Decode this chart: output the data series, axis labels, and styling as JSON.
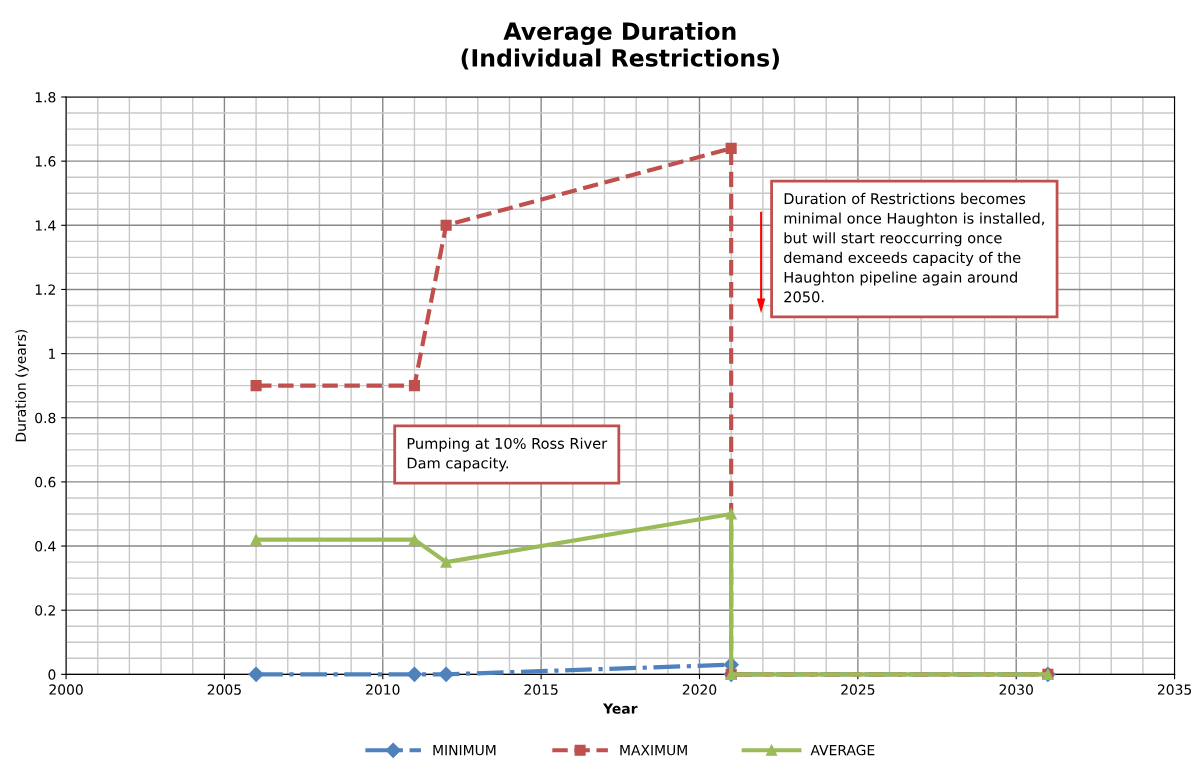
{
  "chart_data": {
    "type": "line",
    "title": "Average Duration\n(Individual Restrictions)",
    "xlabel": "Year",
    "ylabel": "Duration (years)",
    "x": [
      2006,
      2011,
      2012,
      2021,
      2021,
      2031
    ],
    "series": [
      {
        "name": "MINIMUM",
        "color": "#4f81bd",
        "values": [
          0,
          0,
          0,
          0.03,
          0,
          0
        ],
        "marker": "diamond",
        "line_style": "dashdot"
      },
      {
        "name": "MAXIMUM",
        "color": "#c0504d",
        "values": [
          0.9,
          0.9,
          1.4,
          1.64,
          0,
          0
        ],
        "marker": "square",
        "line_style": "dashed"
      },
      {
        "name": "AVERAGE",
        "color": "#9bbb59",
        "values": [
          0.42,
          0.42,
          0.35,
          0.5,
          0,
          0
        ],
        "marker": "triangle",
        "line_style": "solid"
      }
    ],
    "xlim": [
      2000,
      2035
    ],
    "xticks": [
      2000,
      2005,
      2010,
      2015,
      2020,
      2025,
      2030,
      2035
    ],
    "ylim": [
      0,
      1.8
    ],
    "yticks": [
      0,
      0.2,
      0.4,
      0.6,
      0.8,
      1,
      1.2,
      1.4,
      1.6,
      1.8
    ],
    "grid": true,
    "legend": "bottom",
    "annotations": [
      "Duration of Restrictions becomes minimal once Haughton is installed, but will start reoccurring once demand exceeds capacity of the Haughton pipeline again around 2050.",
      "Pumping at 10% Ross River Dam capacity."
    ]
  }
}
